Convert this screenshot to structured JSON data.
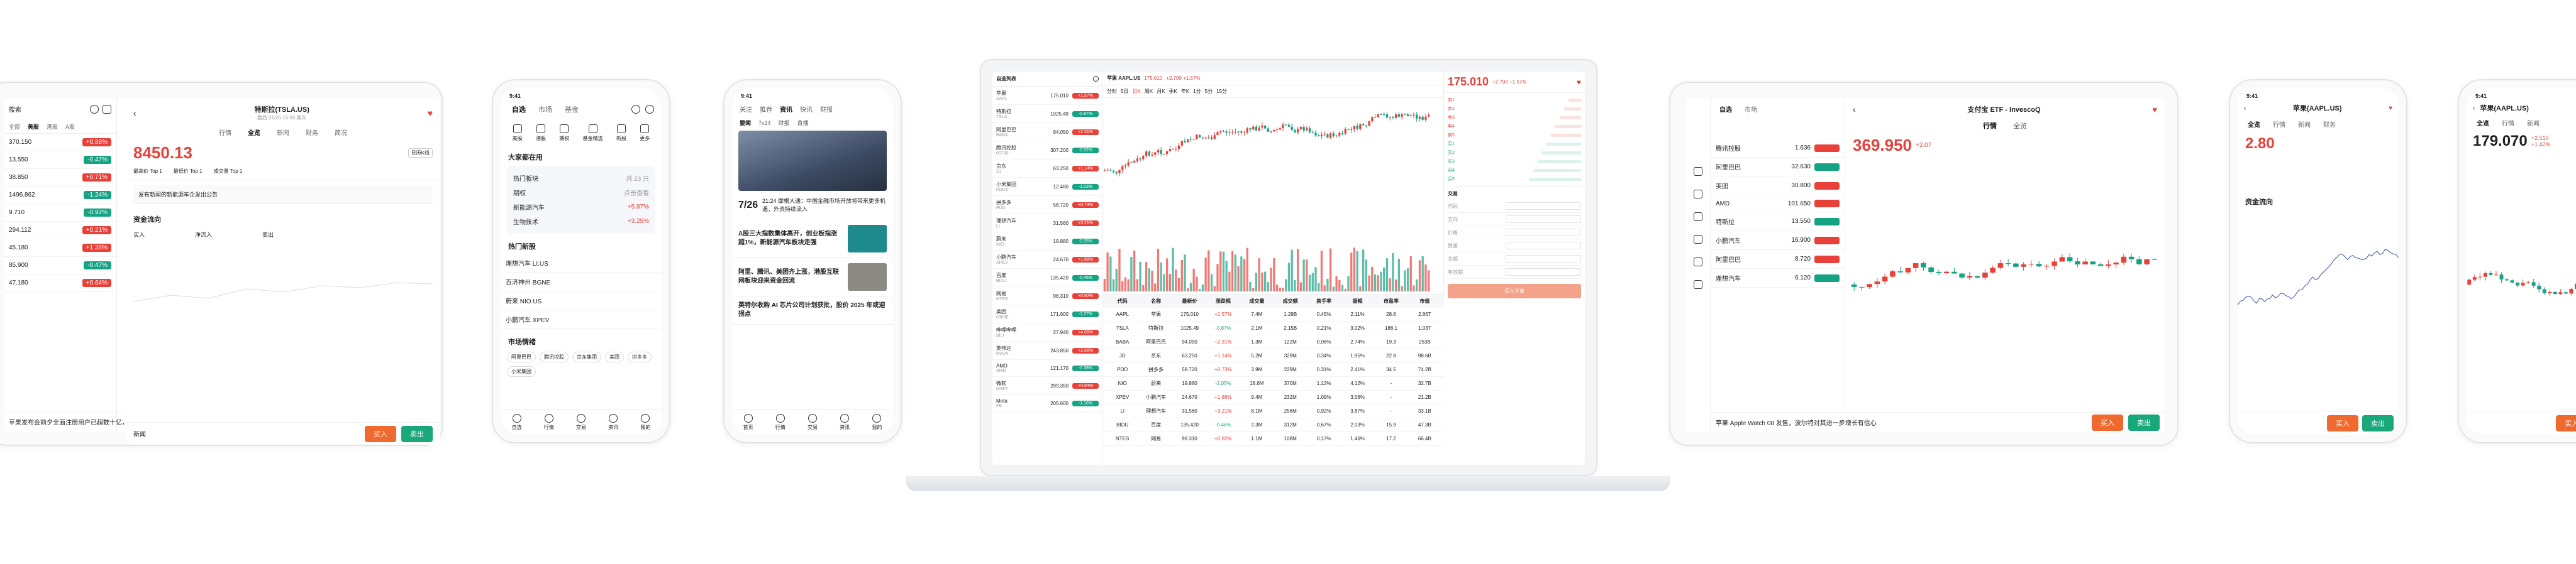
{
  "left_tablet": {
    "search": "搜索",
    "tabs": [
      "全部",
      "美股",
      "港股",
      "A股"
    ],
    "prices": [
      "370.150",
      "13.550",
      "38.850",
      "1496.862",
      "9.710",
      "294.112",
      "45.180",
      "85.900",
      "47.180"
    ],
    "changes": [
      "+0.88%",
      "-0.47%",
      "+0.71%",
      "-1.24%",
      "-0.92%",
      "+0.21%",
      "+1.35%",
      "-0.47%",
      "+0.64%"
    ],
    "news": "苹果发布会前夕全面注册用户已超数十亿，分析师称……"
  },
  "tesla_tablet": {
    "title": "特斯拉(TSLA.US)",
    "subtitle": "盘后 01/26 16:00 美东",
    "tabs": [
      "行情",
      "全览",
      "新闻",
      "财务",
      "简况"
    ],
    "price": "8450.13",
    "badge": "日历K线",
    "metrics": [
      "最高价 Top 1",
      "最低价 Top 1",
      "成交量 Top 1"
    ],
    "alert": "发布新闻的新能源车企发出公告",
    "flows_title": "资金流向",
    "flows": [
      "买入",
      "净流入",
      "卖出"
    ],
    "news": "新闻",
    "buy": "买入",
    "sell": "卖出"
  },
  "phone1": {
    "time": "9:41",
    "tabs": [
      "自选",
      "市场",
      "基金"
    ],
    "icons": [
      "美股",
      "港股",
      "期权",
      "基金精选",
      "新股",
      "更多"
    ],
    "section": "大家都在用",
    "cards": [
      {
        "t": "热门板块",
        "s": "共 23 只"
      },
      {
        "t": "期权",
        "s": "点击查看"
      },
      {
        "t": "新能源汽车",
        "s": "+5.87%"
      },
      {
        "t": "生物技术",
        "s": "+3.25%"
      }
    ],
    "section2": "热门新股",
    "items": [
      "理想汽车 LI.US",
      "百济神州 BGNE",
      "蔚来 NIO.US",
      "小鹏汽车 XPEV"
    ],
    "section3": "市场情绪",
    "tags": [
      "阿里巴巴",
      "腾讯控股",
      "京东集团",
      "美团",
      "拼多多",
      "小米集团"
    ],
    "nav": [
      "自选",
      "行情",
      "交易",
      "资讯",
      "我的"
    ]
  },
  "phone2": {
    "time": "9:41",
    "tabs": [
      "关注",
      "推荐",
      "资讯",
      "快讯",
      "财报"
    ],
    "sub": [
      "要闻",
      "7x24",
      "财报",
      "直播"
    ],
    "date": "7/26",
    "h1": "21:24 摩根大通：中国金融市场开放将带来更多机遇，外资持续流入",
    "h2": "A股三大指数集体高开，创业板指涨超1%，新能源汽车板块走强",
    "h3": "阿里、腾讯、美团齐上涨，港股互联网板块迎来资金回流",
    "h4": "英特尔收购 AI 芯片公司计划获批，股价 2025 年或迎拐点",
    "nav": [
      "首页",
      "行情",
      "交易",
      "资讯",
      "我的"
    ]
  },
  "desktop": {
    "ticker": "苹果 AAPL.US",
    "price": "175.010",
    "change": "+2.700 +1.57%",
    "watch_title": "自选列表",
    "watch": [
      {
        "n": "苹果",
        "c": "AAPL",
        "p": "175.010",
        "g": "+1.57%"
      },
      {
        "n": "特斯拉",
        "c": "TSLA",
        "p": "1025.49",
        "g": "-0.87%"
      },
      {
        "n": "阿里巴巴",
        "c": "BABA",
        "p": "94.050",
        "g": "+2.31%"
      },
      {
        "n": "腾讯控股",
        "c": "00700",
        "p": "307.200",
        "g": "-0.52%"
      },
      {
        "n": "京东",
        "c": "JD",
        "p": "63.250",
        "g": "+1.14%"
      },
      {
        "n": "小米集团",
        "c": "01810",
        "p": "12.480",
        "g": "-1.03%"
      },
      {
        "n": "拼多多",
        "c": "PDD",
        "p": "58.720",
        "g": "+0.73%"
      },
      {
        "n": "理想汽车",
        "c": "LI",
        "p": "31.560",
        "g": "+3.21%"
      },
      {
        "n": "蔚来",
        "c": "NIO",
        "p": "19.880",
        "g": "-2.05%"
      },
      {
        "n": "小鹏汽车",
        "c": "XPEV",
        "p": "24.670",
        "g": "+1.88%"
      },
      {
        "n": "百度",
        "c": "BIDU",
        "p": "135.420",
        "g": "-0.46%"
      },
      {
        "n": "网易",
        "c": "NTES",
        "p": "98.310",
        "g": "+0.92%"
      },
      {
        "n": "美团",
        "c": "03690",
        "p": "171.600",
        "g": "-1.27%"
      },
      {
        "n": "哔哩哔哩",
        "c": "BILI",
        "p": "27.940",
        "g": "+4.05%"
      },
      {
        "n": "英伟达",
        "c": "NVDA",
        "p": "243.850",
        "g": "+2.66%"
      },
      {
        "n": "AMD",
        "c": "AMD",
        "p": "121.170",
        "g": "-0.38%"
      },
      {
        "n": "微软",
        "c": "MSFT",
        "p": "299.350",
        "g": "+0.84%"
      },
      {
        "n": "Meta",
        "c": "FB",
        "p": "205.600",
        "g": "-1.16%"
      }
    ],
    "toolbar": [
      "分时",
      "5日",
      "日K",
      "周K",
      "月K",
      "季K",
      "年K",
      "1分",
      "5分",
      "15分"
    ],
    "order_title": "交易",
    "order_fields": [
      "代码",
      "方向",
      "价格",
      "数量",
      "金额",
      "有效期"
    ],
    "order_btn": "买入下单",
    "table_headers": [
      "代码",
      "名称",
      "最新价",
      "涨跌幅",
      "成交量",
      "成交额",
      "换手率",
      "振幅",
      "市盈率",
      "市值"
    ],
    "table_rows": [
      [
        "AAPL",
        "苹果",
        "175.010",
        "+1.57%",
        "7.4M",
        "1.29B",
        "0.45%",
        "2.11%",
        "28.6",
        "2.86T"
      ],
      [
        "TSLA",
        "特斯拉",
        "1025.49",
        "-0.87%",
        "2.1M",
        "2.15B",
        "0.21%",
        "3.02%",
        "186.1",
        "1.03T"
      ],
      [
        "BABA",
        "阿里巴巴",
        "94.050",
        "+2.31%",
        "1.3M",
        "122M",
        "0.06%",
        "2.74%",
        "19.3",
        "253B"
      ],
      [
        "JD",
        "京东",
        "63.250",
        "+1.14%",
        "5.2M",
        "329M",
        "0.34%",
        "1.95%",
        "22.8",
        "98.6B"
      ],
      [
        "PDD",
        "拼多多",
        "58.720",
        "+0.73%",
        "3.9M",
        "229M",
        "0.31%",
        "2.41%",
        "34.5",
        "74.2B"
      ],
      [
        "NIO",
        "蔚来",
        "19.880",
        "-2.05%",
        "18.6M",
        "370M",
        "1.12%",
        "4.12%",
        "-",
        "32.7B"
      ],
      [
        "XPEV",
        "小鹏汽车",
        "24.670",
        "+1.88%",
        "9.4M",
        "232M",
        "1.09%",
        "3.56%",
        "-",
        "21.2B"
      ],
      [
        "LI",
        "理想汽车",
        "31.560",
        "+3.21%",
        "8.1M",
        "256M",
        "0.92%",
        "3.87%",
        "-",
        "33.1B"
      ],
      [
        "BIDU",
        "百度",
        "135.420",
        "-0.46%",
        "2.3M",
        "312M",
        "0.67%",
        "2.03%",
        "15.9",
        "47.3B"
      ],
      [
        "NTES",
        "网易",
        "98.310",
        "+0.92%",
        "1.1M",
        "108M",
        "0.17%",
        "1.46%",
        "17.2",
        "66.4B"
      ]
    ]
  },
  "etf_tablet": {
    "title": "支付宝 ETF - InvescoQ",
    "tabs": [
      "行情",
      "全览"
    ],
    "price": "369.950",
    "change": "+2.07",
    "list": [
      {
        "n": "腾讯控股",
        "p": "1.636"
      },
      {
        "n": "阿里巴巴",
        "p": "32.630"
      },
      {
        "n": "美团",
        "p": "30.800"
      },
      {
        "n": "AMD",
        "p": "101.650"
      },
      {
        "n": "特斯拉",
        "p": "13.550"
      },
      {
        "n": "小鹏汽车",
        "p": "16.900"
      },
      {
        "n": "阿里巴巴",
        "p": "8.720"
      },
      {
        "n": "理想汽车",
        "p": "6.120"
      }
    ],
    "news": "苹果 Apple Watch 08 发售，波尔特对其进一步增长有信心",
    "buy": "买入",
    "sell": "卖出"
  },
  "phone3": {
    "time": "9:41",
    "title": "苹果(AAPL.US)",
    "tabs": [
      "全览",
      "行情",
      "新闻",
      "财务"
    ],
    "price": "2.80",
    "section": "资金流向",
    "buy": "买入",
    "sell": "卖出"
  },
  "phone4": {
    "time": "9:41",
    "title": "苹果(AAPL.US)",
    "price": "179.070",
    "change": "+2.510",
    "pct": "+1.42%",
    "tabs": [
      "全览",
      "行情",
      "新闻"
    ],
    "buy": "买入",
    "sell": "卖出"
  }
}
